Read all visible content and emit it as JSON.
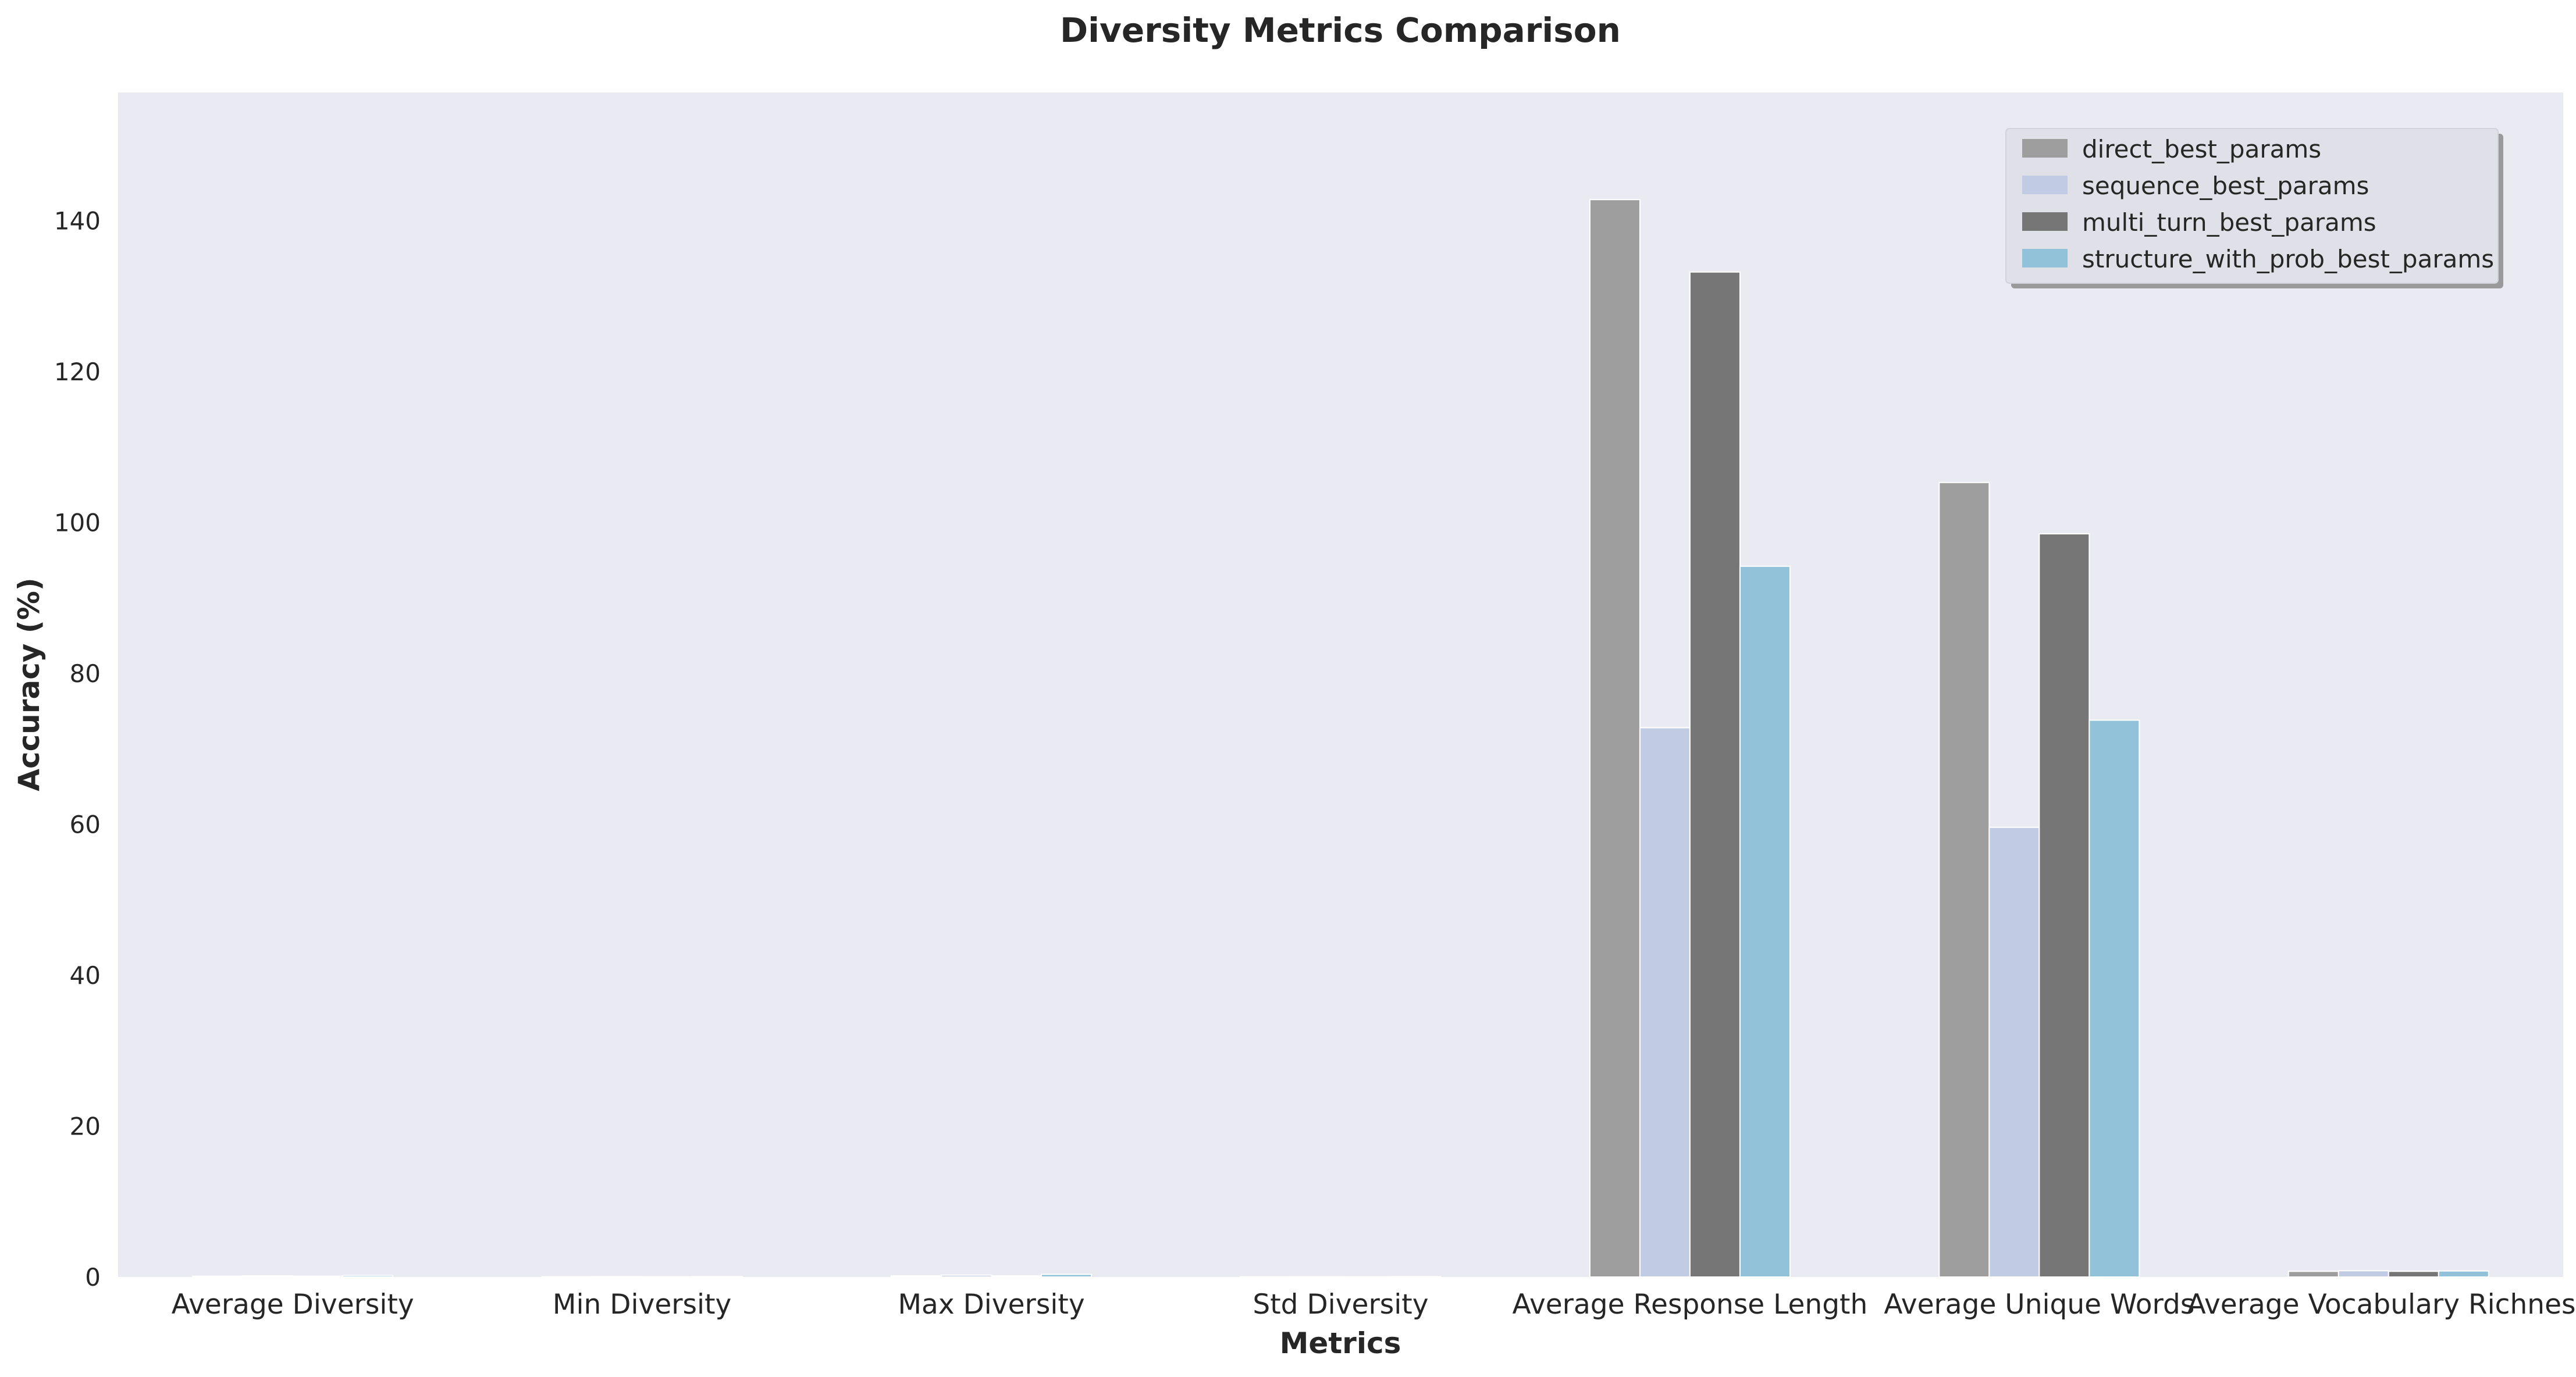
{
  "chart_data": {
    "type": "bar",
    "title": "Diversity Metrics Comparison",
    "xlabel": "Metrics",
    "ylabel": "Accuracy (%)",
    "categories": [
      "Average Diversity",
      "Min Diversity",
      "Max Diversity",
      "Std Diversity",
      "Average Response Length",
      "Average Unique Words",
      "Average Vocabulary Richness"
    ],
    "series": [
      {
        "name": "direct_best_params",
        "color": "#9e9e9e",
        "values": [
          0.1,
          0.03,
          0.15,
          0.02,
          142.8,
          105.3,
          0.75
        ]
      },
      {
        "name": "sequence_best_params",
        "color": "#c1cbe3",
        "values": [
          0.15,
          0.05,
          0.25,
          0.03,
          72.8,
          59.6,
          0.83
        ]
      },
      {
        "name": "multi_turn_best_params",
        "color": "#767676",
        "values": [
          0.1,
          0.03,
          0.15,
          0.02,
          133.2,
          98.5,
          0.75
        ]
      },
      {
        "name": "structure_with_prob_best_params",
        "color": "#92c2da",
        "values": [
          0.2,
          0.05,
          0.35,
          0.04,
          94.2,
          73.8,
          0.8
        ]
      }
    ],
    "ylim": [
      0,
      157
    ],
    "yticks": [
      0,
      20,
      40,
      60,
      80,
      100,
      120,
      140
    ],
    "grid": false,
    "legend_position": "top-right",
    "plot_background": "#eaeaf2"
  }
}
